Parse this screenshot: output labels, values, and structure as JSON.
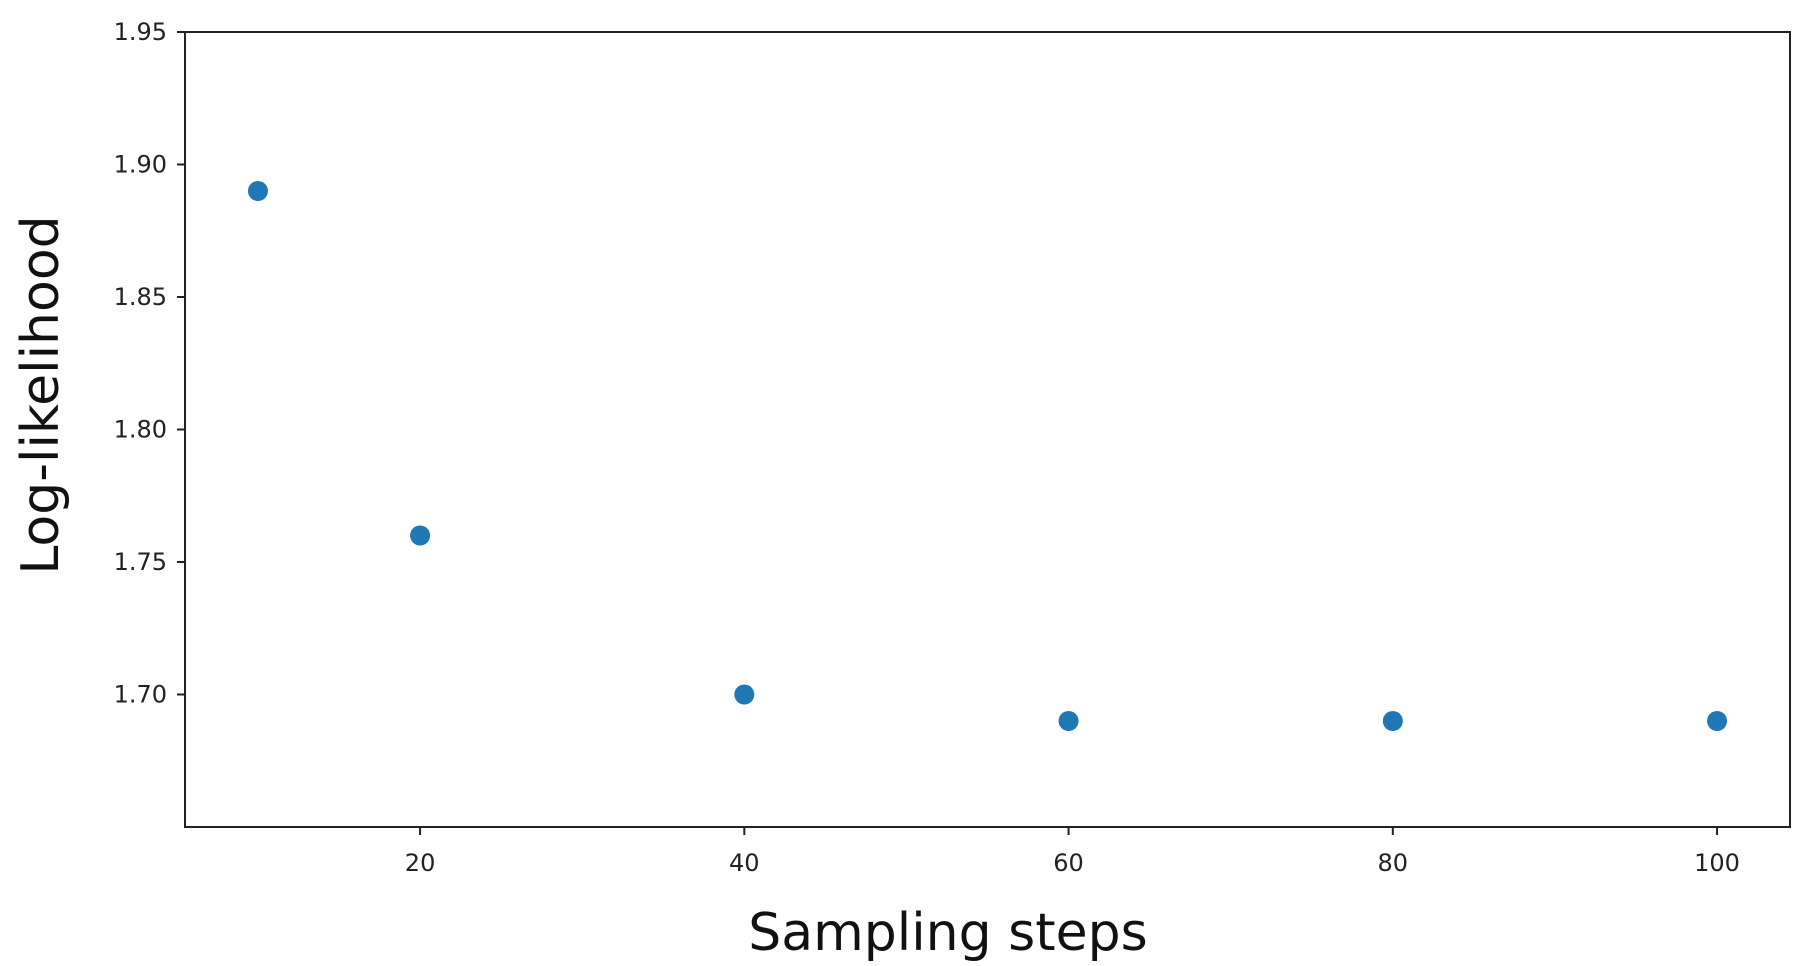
{
  "chart_data": {
    "type": "scatter",
    "title": "",
    "xlabel": "Sampling steps",
    "ylabel": "Log-likelihood",
    "x": [
      10,
      20,
      40,
      60,
      80,
      100
    ],
    "y": [
      1.89,
      1.76,
      1.7,
      1.69,
      1.69,
      1.69
    ],
    "xlim": [
      5.5,
      104.5
    ],
    "ylim": [
      1.65,
      1.95
    ],
    "xticks": [
      20,
      40,
      60,
      80,
      100
    ],
    "xtick_labels": [
      "20",
      "40",
      "60",
      "80",
      "100"
    ],
    "yticks": [
      1.7,
      1.75,
      1.8,
      1.85,
      1.9,
      1.95
    ],
    "ytick_labels": [
      "1.70",
      "1.75",
      "1.80",
      "1.85",
      "1.90",
      "1.95"
    ],
    "grid": false,
    "marker_color": "#1f77b4"
  }
}
